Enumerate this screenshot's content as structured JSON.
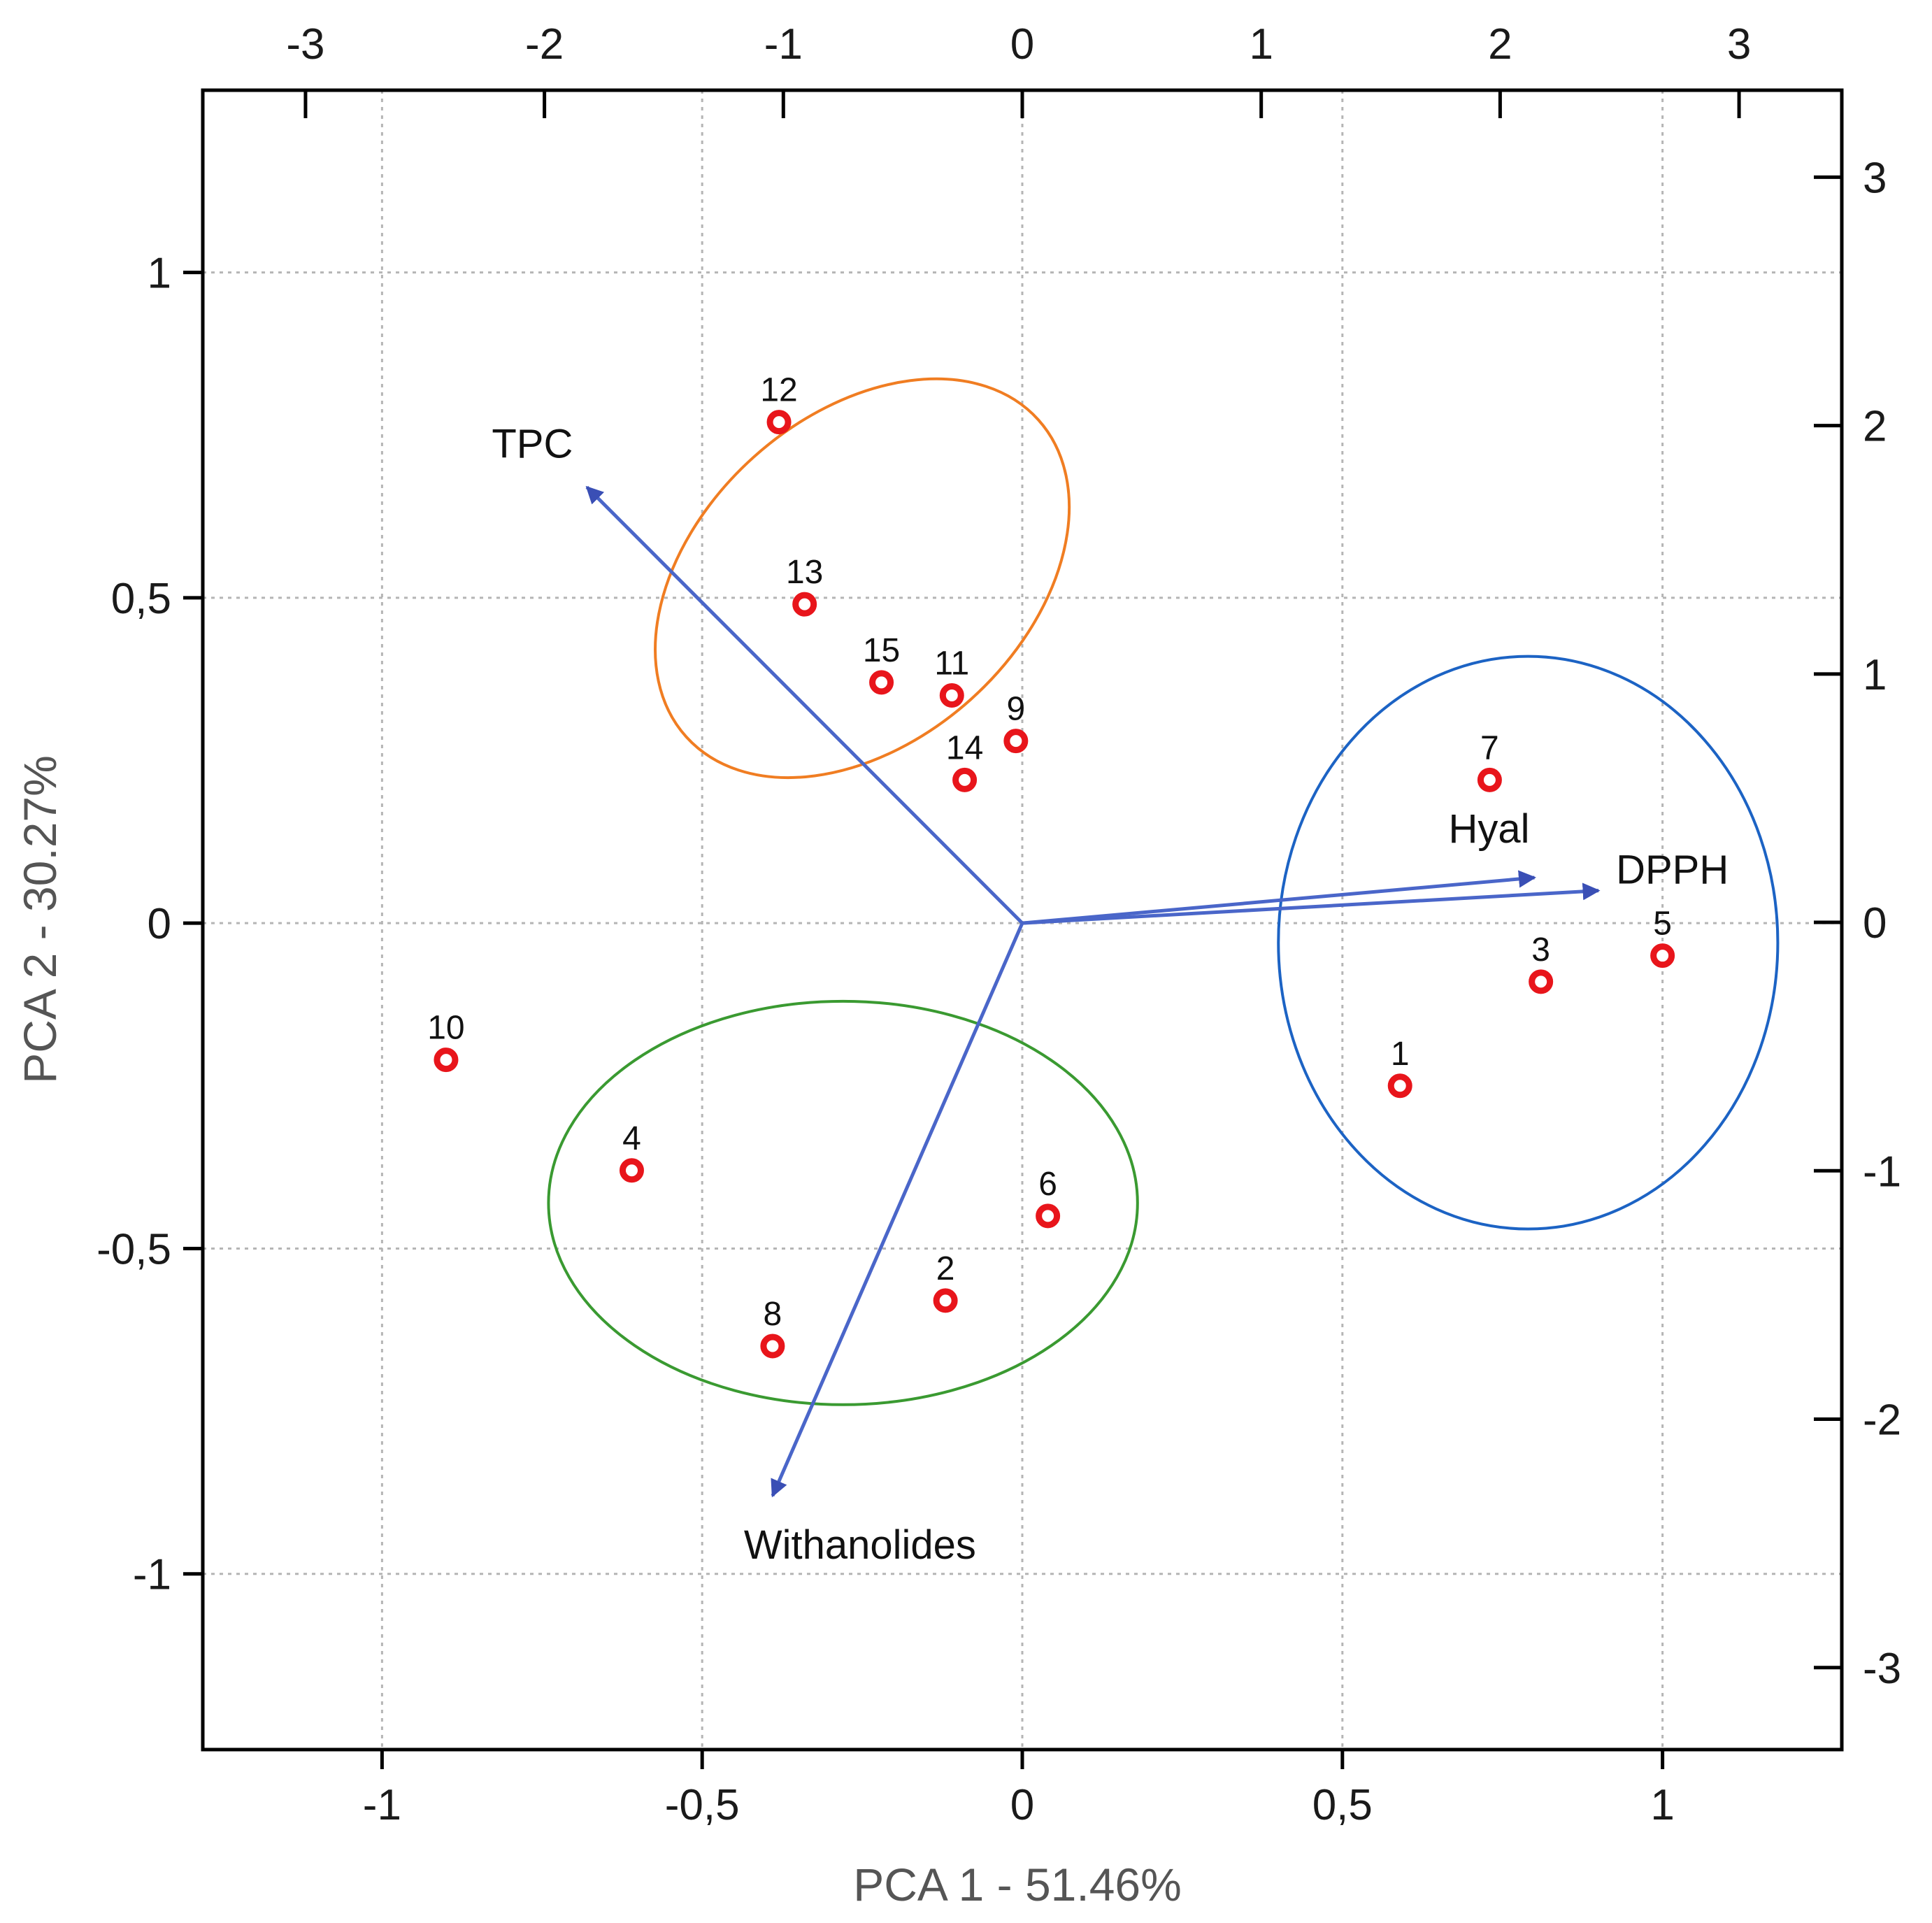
{
  "colors": {
    "point": "#e8151b",
    "vector": "#4a66c9",
    "grid": "#b5b5b5",
    "ellipse_orange": "#f07d22",
    "ellipse_green": "#3a9a31",
    "ellipse_blue": "#1c63c4",
    "frame": "#000000"
  },
  "chart_data": {
    "type": "scatter",
    "subtype": "pca-biplot",
    "xlabel": "PCA 1 - 51.46%",
    "ylabel": "PCA 2 - 30.27%",
    "xlim": [
      -1.28,
      1.28
    ],
    "ylim": [
      -1.27,
      1.28
    ],
    "x_ticks": [
      {
        "value": -1,
        "label": "-1"
      },
      {
        "value": -0.5,
        "label": "-0,5"
      },
      {
        "value": 0,
        "label": "0"
      },
      {
        "value": 0.5,
        "label": "0,5"
      },
      {
        "value": 1,
        "label": "1"
      }
    ],
    "y_ticks": [
      {
        "value": -1,
        "label": "-1"
      },
      {
        "value": -0.5,
        "label": "-0,5"
      },
      {
        "value": 0,
        "label": "0"
      },
      {
        "value": 0.5,
        "label": "0,5"
      },
      {
        "value": 1,
        "label": "1"
      }
    ],
    "top_axis": {
      "range": [
        -3.43,
        3.43
      ],
      "ticks": [
        {
          "value": -3,
          "label": "-3"
        },
        {
          "value": -2,
          "label": "-2"
        },
        {
          "value": -1,
          "label": "-1"
        },
        {
          "value": 0,
          "label": "0"
        },
        {
          "value": 1,
          "label": "1"
        },
        {
          "value": 2,
          "label": "2"
        },
        {
          "value": 3,
          "label": "3"
        }
      ]
    },
    "right_axis": {
      "range": [
        -3.33,
        3.35
      ],
      "ticks": [
        {
          "value": 3,
          "label": "3"
        },
        {
          "value": 2,
          "label": "2"
        },
        {
          "value": 1,
          "label": "1"
        },
        {
          "value": 0,
          "label": "0"
        },
        {
          "value": -1,
          "label": "-1"
        },
        {
          "value": -2,
          "label": "-2"
        },
        {
          "value": -3,
          "label": "-3"
        }
      ]
    },
    "grid": true,
    "points": [
      {
        "label": "1",
        "x": 0.59,
        "y": -0.25
      },
      {
        "label": "2",
        "x": -0.12,
        "y": -0.58
      },
      {
        "label": "3",
        "x": 0.81,
        "y": -0.09
      },
      {
        "label": "4",
        "x": -0.61,
        "y": -0.38
      },
      {
        "label": "5",
        "x": 1.0,
        "y": -0.05
      },
      {
        "label": "6",
        "x": 0.04,
        "y": -0.45
      },
      {
        "label": "7",
        "x": 0.73,
        "y": 0.22
      },
      {
        "label": "8",
        "x": -0.39,
        "y": -0.65
      },
      {
        "label": "9",
        "x": -0.01,
        "y": 0.28
      },
      {
        "label": "10",
        "x": -0.9,
        "y": -0.21
      },
      {
        "label": "11",
        "x": -0.11,
        "y": 0.35
      },
      {
        "label": "12",
        "x": -0.38,
        "y": 0.77
      },
      {
        "label": "13",
        "x": -0.34,
        "y": 0.49
      },
      {
        "label": "14",
        "x": -0.09,
        "y": 0.22
      },
      {
        "label": "15",
        "x": -0.22,
        "y": 0.37
      }
    ],
    "vectors": [
      {
        "label": "TPC",
        "x": -0.68,
        "y": 0.67
      },
      {
        "label": "Hyal",
        "x": 0.8,
        "y": 0.07
      },
      {
        "label": "DPPH",
        "x": 0.9,
        "y": 0.05
      },
      {
        "label": "Withanolides",
        "x": -0.39,
        "y": -0.88
      }
    ],
    "groups": [
      {
        "name": "orange-cluster",
        "color": "ellipse_orange",
        "cx": -0.25,
        "cy": 0.53,
        "rx": 0.37,
        "ry": 0.25,
        "angle_deg": -42
      },
      {
        "name": "green-cluster",
        "color": "ellipse_green",
        "cx": -0.28,
        "cy": -0.43,
        "rx": 0.46,
        "ry": 0.31,
        "angle_deg": 0
      },
      {
        "name": "blue-cluster",
        "color": "ellipse_blue",
        "cx": 0.79,
        "cy": -0.03,
        "rx": 0.39,
        "ry": 0.44,
        "angle_deg": 0
      }
    ]
  }
}
